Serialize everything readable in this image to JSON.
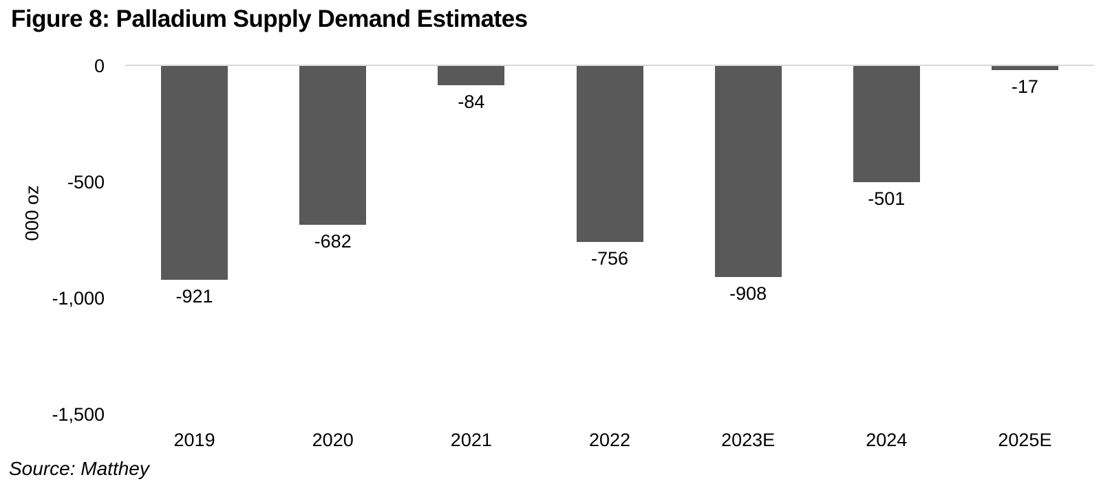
{
  "figure": {
    "title": "Figure 8: Palladium Supply Demand Estimates",
    "source": "Source: Matthey"
  },
  "chart_data": {
    "type": "bar",
    "title": "Figure 8: Palladium Supply Demand Estimates",
    "categories": [
      "2019",
      "2020",
      "2021",
      "2022",
      "2023E",
      "2024",
      "2025E"
    ],
    "values": [
      -921,
      -682,
      -84,
      -756,
      -908,
      -501,
      -17
    ],
    "data_labels": [
      "-921",
      "-682",
      "-84",
      "-756",
      "-908",
      "-501",
      "-17"
    ],
    "xlabel": "",
    "ylabel": "000 oz",
    "ylim": [
      -1500,
      0
    ],
    "yticks": [
      {
        "value": 0,
        "label": "0"
      },
      {
        "value": -500,
        "label": "-500"
      },
      {
        "value": -1000,
        "label": "-1,000"
      },
      {
        "value": -1500,
        "label": "-1,500"
      }
    ],
    "grid": false,
    "legend": "none",
    "bar_color": "#595959",
    "axis_line_color": "#d9d9d9",
    "text_color": "#000000",
    "source": "Source: Matthey"
  }
}
